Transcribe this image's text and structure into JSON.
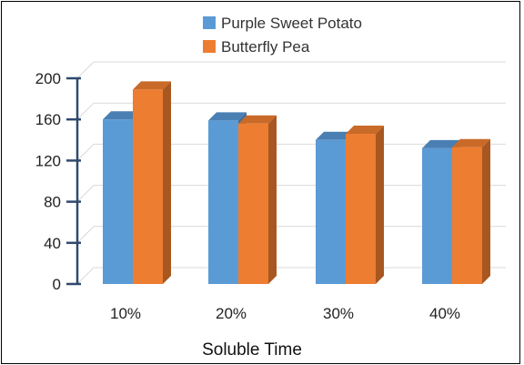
{
  "chart_data": {
    "type": "bar",
    "title": "",
    "xlabel": "Soluble Time",
    "ylabel": "",
    "categories": [
      "10%",
      "20%",
      "30%",
      "40%"
    ],
    "series": [
      {
        "name": "Purple Sweet Potato",
        "values": [
          160,
          159,
          140,
          132
        ]
      },
      {
        "name": "Butterfly Pea",
        "values": [
          189,
          156,
          146,
          133
        ]
      }
    ],
    "ylim": [
      0,
      200
    ],
    "yticks": [
      0,
      40,
      80,
      120,
      160,
      200
    ],
    "grid": true,
    "legend_position": "top",
    "style": "3d-column"
  },
  "colors": {
    "series": [
      "#5b9bd5",
      "#ed7d31"
    ],
    "series_top": [
      "#4a7fb3",
      "#c96a28"
    ],
    "series_side": [
      "#3f6d9a",
      "#a85720"
    ],
    "grid": "#d9d9d9",
    "axis": "#2f4a6e",
    "border": "#000000"
  }
}
